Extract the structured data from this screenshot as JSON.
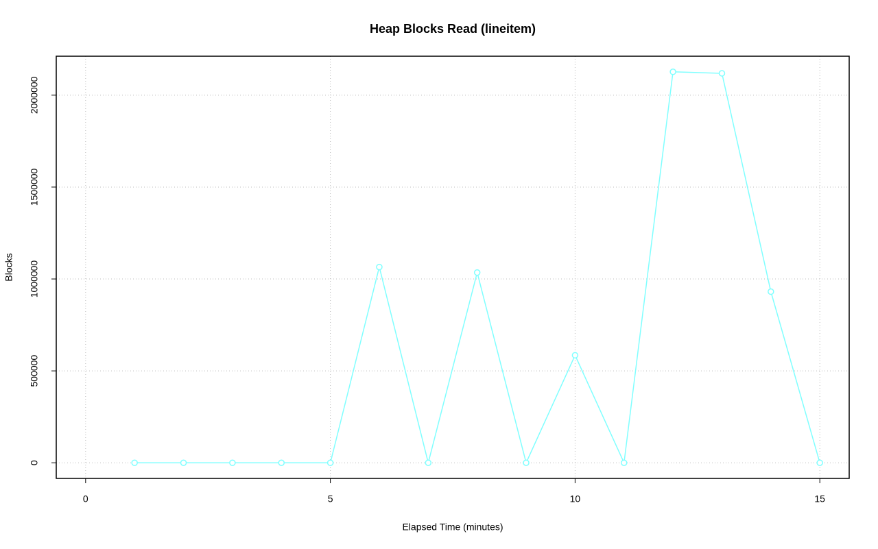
{
  "chart_data": {
    "type": "line",
    "title": "Heap Blocks Read (lineitem)",
    "x_label": "Elapsed Time (minutes)",
    "y_label": "Blocks",
    "x": [
      1,
      2,
      3,
      4,
      5,
      6,
      7,
      8,
      9,
      10,
      11,
      12,
      13,
      14,
      15
    ],
    "values": [
      0,
      0,
      0,
      0,
      0,
      1065000,
      0,
      1035000,
      0,
      585000,
      0,
      2127000,
      2119000,
      931000,
      0
    ],
    "color": "#80ffff",
    "xlim": [
      -0.6,
      15.6
    ],
    "xticks": [
      0,
      5,
      10,
      15
    ],
    "ylim": [
      -85000,
      2212000
    ],
    "yticks": [
      0,
      500000,
      1000000,
      1500000,
      2000000
    ],
    "grid": true
  }
}
